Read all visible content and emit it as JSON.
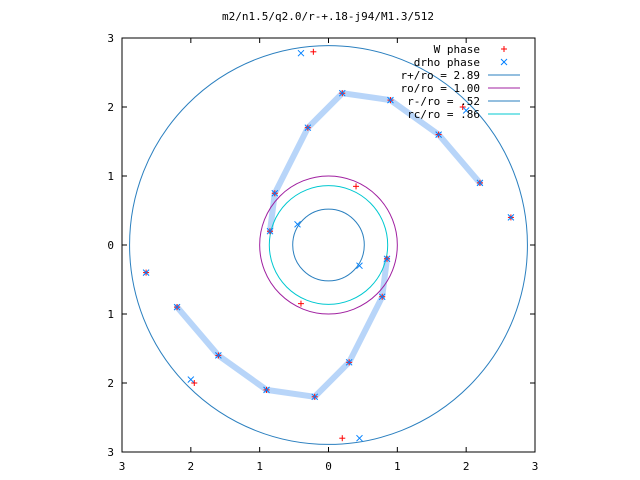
{
  "chart_data": {
    "type": "scatter",
    "title": "m2/n1.5/q2.0/r-+.18-j94/M1.3/512",
    "xlim": [
      -3,
      3
    ],
    "ylim": [
      -3,
      3
    ],
    "x_ticks": [
      "3",
      "2",
      "1",
      "0",
      "1",
      "2",
      "3"
    ],
    "y_ticks": [
      "3",
      "2",
      "1",
      "0",
      "1",
      "2",
      "3"
    ],
    "grid": false,
    "legend_position": "top-right",
    "legend": [
      {
        "label": "W phase",
        "kind": "plus",
        "color": "#ff0000"
      },
      {
        "label": "drho phase",
        "kind": "cross",
        "color": "#0080ff"
      },
      {
        "label": "r+/ro = 2.89",
        "kind": "line",
        "color": "#2a7fbf"
      },
      {
        "label": "ro/ro = 1.00",
        "kind": "line",
        "color": "#a020a0"
      },
      {
        "label": "r-/ro = .52",
        "kind": "line",
        "color": "#2a7fbf"
      },
      {
        "label": "rc/ro = .86",
        "kind": "line",
        "color": "#00c8d0"
      }
    ],
    "circles": [
      {
        "name": "r+/ro",
        "r": 2.89,
        "color": "#2a7fbf"
      },
      {
        "name": "ro/ro",
        "r": 1.0,
        "color": "#a020a0"
      },
      {
        "name": "r-/ro",
        "r": 0.52,
        "color": "#2a7fbf"
      },
      {
        "name": "rc/ro",
        "r": 0.86,
        "color": "#00c8d0"
      }
    ],
    "series": [
      {
        "name": "W phase",
        "marker": "plus",
        "color": "#ff0000",
        "points": [
          [
            -0.85,
            0.2
          ],
          [
            -0.78,
            0.75
          ],
          [
            -0.3,
            1.7
          ],
          [
            0.2,
            2.2
          ],
          [
            0.9,
            2.1
          ],
          [
            1.6,
            1.6
          ],
          [
            2.2,
            0.9
          ],
          [
            0.85,
            -0.2
          ],
          [
            0.78,
            -0.75
          ],
          [
            0.3,
            -1.7
          ],
          [
            -0.2,
            -2.2
          ],
          [
            -0.9,
            -2.1
          ],
          [
            -1.6,
            -1.6
          ],
          [
            -2.2,
            -0.9
          ],
          [
            -0.4,
            -0.85
          ],
          [
            0.4,
            0.85
          ],
          [
            -2.65,
            -0.4
          ],
          [
            2.65,
            0.4
          ],
          [
            -1.95,
            -2.0
          ],
          [
            1.95,
            2.0
          ],
          [
            -0.22,
            2.8
          ],
          [
            0.2,
            -2.8
          ]
        ]
      },
      {
        "name": "drho phase",
        "marker": "cross",
        "color": "#0080ff",
        "points": [
          [
            -0.85,
            0.2
          ],
          [
            -0.78,
            0.75
          ],
          [
            -0.3,
            1.7
          ],
          [
            0.2,
            2.2
          ],
          [
            0.9,
            2.1
          ],
          [
            1.6,
            1.6
          ],
          [
            2.2,
            0.9
          ],
          [
            0.85,
            -0.2
          ],
          [
            0.78,
            -0.75
          ],
          [
            0.3,
            -1.7
          ],
          [
            -0.2,
            -2.2
          ],
          [
            -0.9,
            -2.1
          ],
          [
            -1.6,
            -1.6
          ],
          [
            -2.2,
            -0.9
          ],
          [
            -0.45,
            0.3
          ],
          [
            0.45,
            -0.3
          ],
          [
            -2.65,
            -0.4
          ],
          [
            2.65,
            0.4
          ],
          [
            -2.0,
            -1.95
          ],
          [
            2.0,
            1.95
          ],
          [
            -0.4,
            2.78
          ],
          [
            0.45,
            -2.8
          ]
        ]
      }
    ]
  }
}
